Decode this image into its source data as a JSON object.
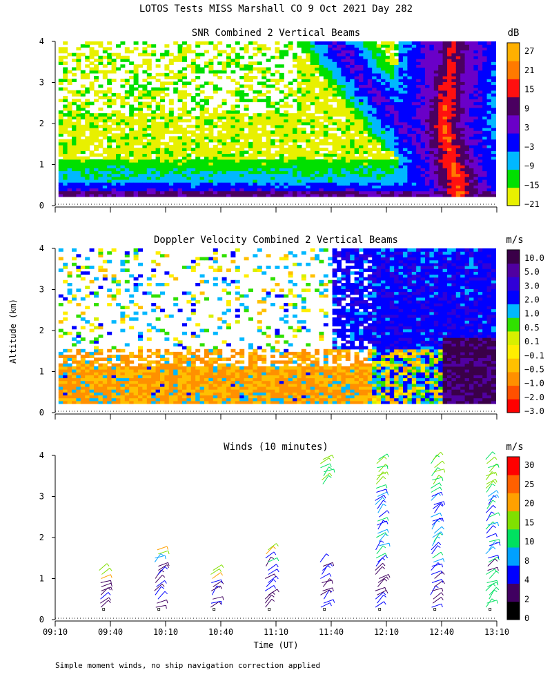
{
  "title": "LOTOS Tests MISS Marshall CO   9 Oct 2021 Day 282",
  "footnote": "Simple moment winds, no ship navigation correction applied",
  "shared_ylabel": "Altitude (km)",
  "shared_xlabel": "Time (UT)",
  "chart_data": [
    {
      "type": "heatmap",
      "title": "SNR Combined 2 Vertical Beams",
      "xlabel": "",
      "ylabel": "Altitude (km)",
      "xlim": [
        550,
        790
      ],
      "ylim": [
        0,
        4
      ],
      "yticks": [
        "0",
        "1",
        "2",
        "3",
        "4"
      ],
      "colorbar": {
        "unit": "dB",
        "labels": [
          "27",
          "21",
          "15",
          "9",
          "3",
          "−3",
          "−9",
          "−15",
          "−21"
        ],
        "colors": [
          "#e8f000",
          "#00e000",
          "#00b8ff",
          "#0000ff",
          "#6a00c8",
          "#4a0060",
          "#ff1010",
          "#ff7a00",
          "#ffb000"
        ]
      }
    },
    {
      "type": "heatmap",
      "title": "Doppler Velocity Combined 2 Vertical Beams",
      "xlabel": "",
      "ylabel": "Altitude (km)",
      "xlim": [
        550,
        790
      ],
      "ylim": [
        0,
        4
      ],
      "yticks": [
        "0",
        "1",
        "2",
        "3",
        "4"
      ],
      "colorbar": {
        "unit": "m/s",
        "labels": [
          "10.0",
          "5.0",
          "3.0",
          "2.0",
          "1.0",
          "0.5",
          "0.1",
          "−0.1",
          "−0.5",
          "−1.0",
          "−2.0",
          "−3.0"
        ],
        "colors": [
          "#ff0000",
          "#ff5000",
          "#ff9000",
          "#ffc000",
          "#ffee00",
          "#d8f000",
          "#30e000",
          "#00b8ff",
          "#0000ff",
          "#3000d8",
          "#5000a0",
          "#3a0048"
        ]
      }
    },
    {
      "type": "scatter",
      "title": "Winds (10 minutes)",
      "xlabel": "Time (UT)",
      "ylabel": "Altitude (km)",
      "xlim": [
        550,
        790
      ],
      "ylim": [
        0,
        4
      ],
      "yticks": [
        "0",
        "1",
        "2",
        "3",
        "4"
      ],
      "xticks": [
        "09:10",
        "09:40",
        "10:10",
        "10:40",
        "11:10",
        "11:40",
        "12:10",
        "12:40",
        "13:10"
      ],
      "profile_times": [
        575,
        605,
        635,
        665,
        695,
        725,
        755,
        785
      ],
      "colorbar": {
        "unit": "m/s",
        "labels": [
          "30",
          "25",
          "20",
          "15",
          "10",
          "8",
          "4",
          "2",
          "0"
        ],
        "colors": [
          "#000000",
          "#400060",
          "#0000ff",
          "#00a0ff",
          "#00e060",
          "#80e000",
          "#ffa000",
          "#ff6000",
          "#ff0000"
        ]
      }
    }
  ]
}
